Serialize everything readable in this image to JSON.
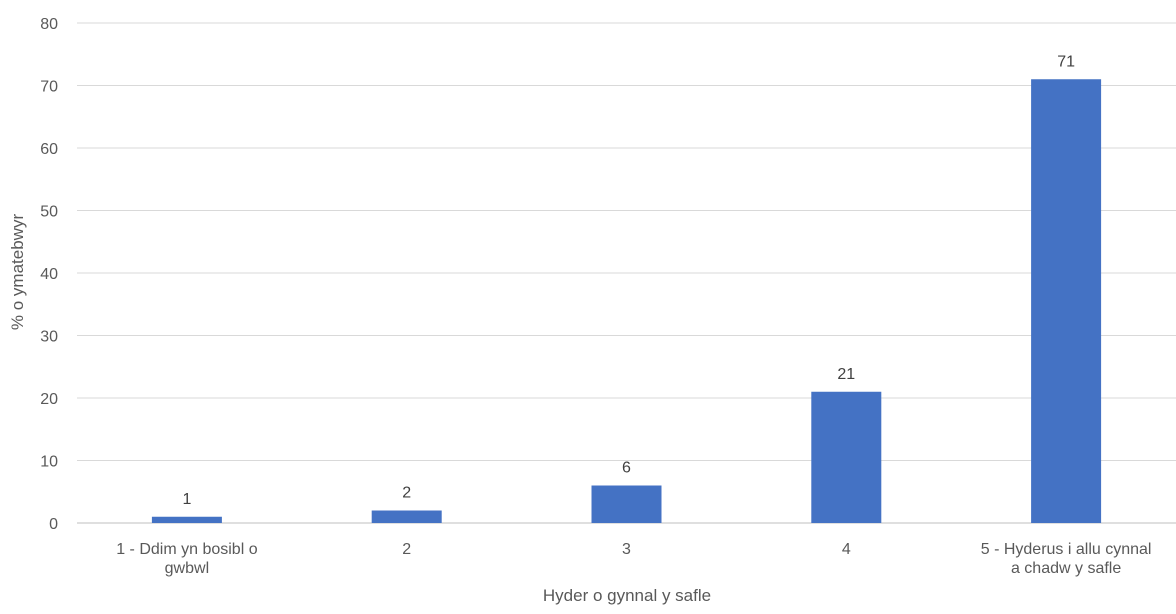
{
  "chart_data": {
    "type": "bar",
    "categories": [
      [
        "1 - Ddim yn bosibl o",
        "gwbwl"
      ],
      [
        "2"
      ],
      [
        "3"
      ],
      [
        "4"
      ],
      [
        "5 - Hyderus i allu cynnal",
        "a chadw y safle"
      ]
    ],
    "values": [
      1,
      2,
      6,
      21,
      71
    ],
    "data_labels": [
      "1",
      "2",
      "6",
      "21",
      "71"
    ],
    "xlabel": "Hyder o gynnal y safle",
    "ylabel": "% o ymatebwyr",
    "ylim": [
      0,
      80
    ],
    "yticks": [
      0,
      10,
      20,
      30,
      40,
      50,
      60,
      70,
      80
    ],
    "grid": true,
    "legend": "none",
    "colors": {
      "bar": "#4472c4",
      "grid": "#d9d9d9",
      "axis": "#bfbfbf",
      "text": "#595959"
    }
  }
}
